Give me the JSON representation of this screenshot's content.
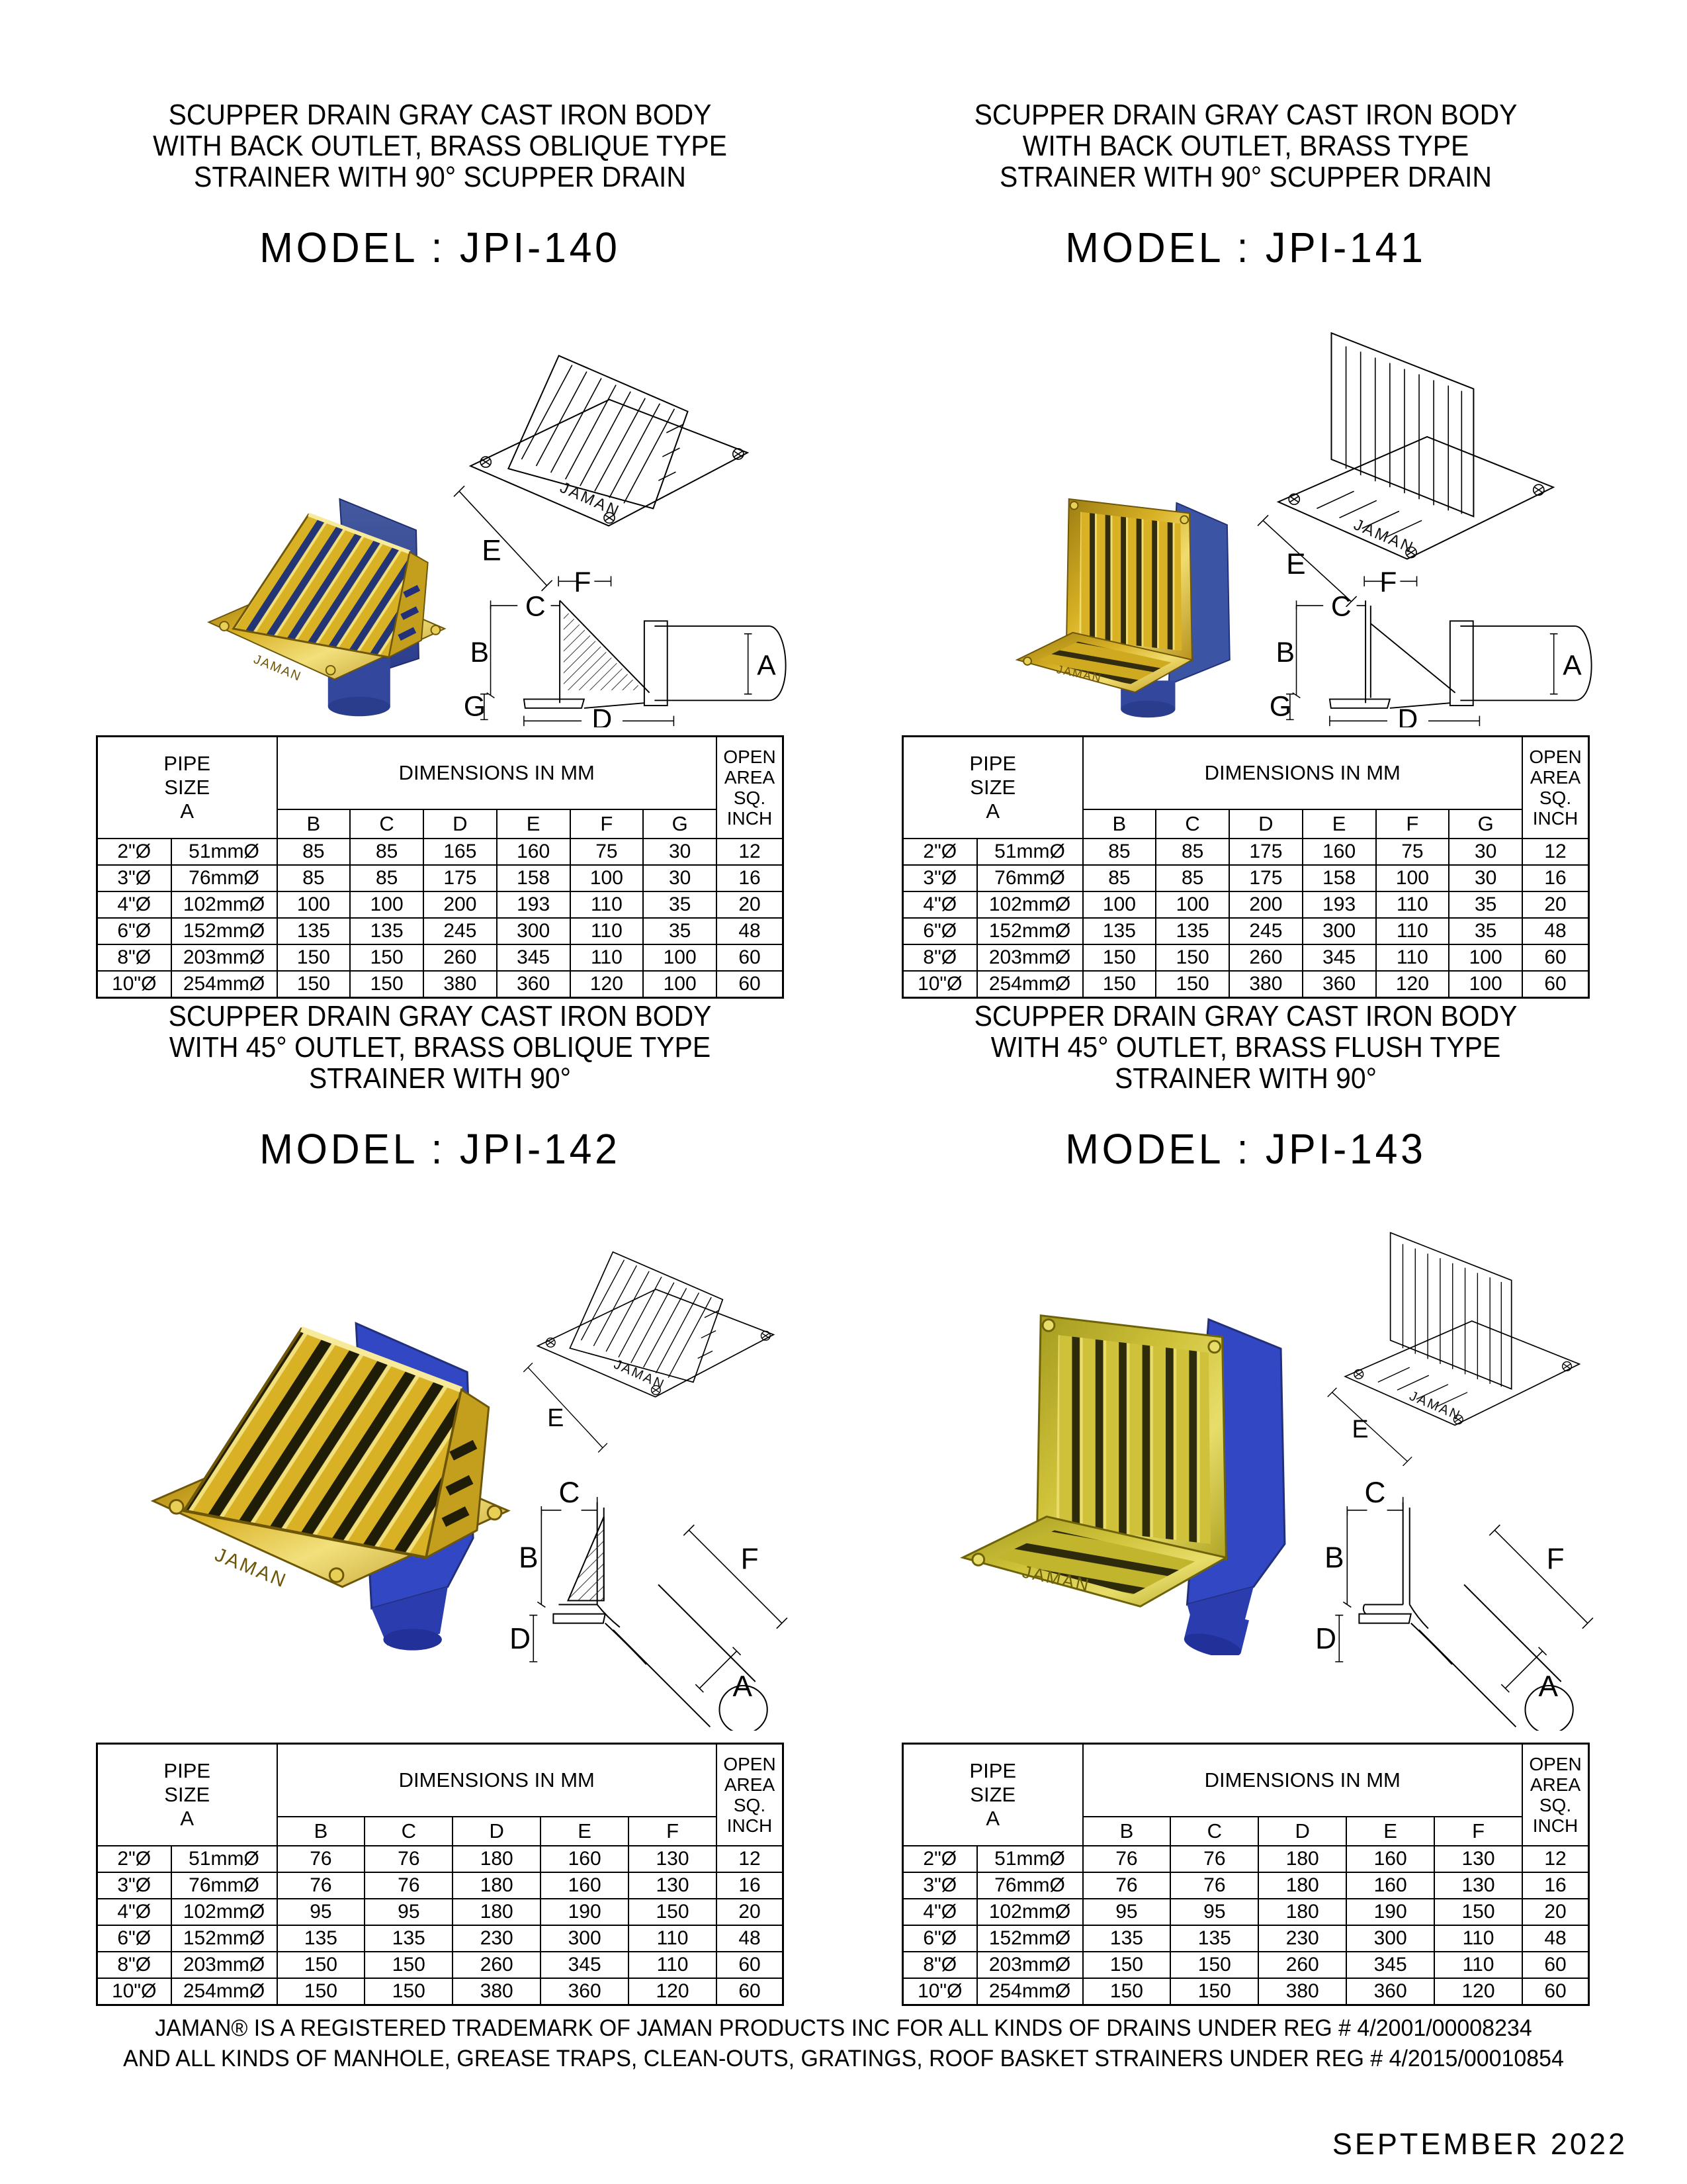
{
  "page": {
    "footer_line1": "JAMAN® IS A REGISTERED TRADEMARK OF JAMAN PRODUCTS INC FOR ALL KINDS OF DRAINS UNDER REG # 4/2001/00008234",
    "footer_line2": "AND ALL KINDS OF MANHOLE, GREASE TRAPS, CLEAN-OUTS, GRATINGS, ROOF BASKET STRAINERS UNDER REG # 4/2015/00010854",
    "date": "SEPTEMBER 2022",
    "colors": {
      "brass": "#C7A11C",
      "brass_light": "#F2E07C",
      "body_blue": "#3B54A4",
      "body_blue_dark": "#2A3C8C",
      "line": "#000000"
    }
  },
  "products": [
    {
      "id": "JPI-140",
      "title_lines": [
        "SCUPPER DRAIN GRAY CAST IRON BODY",
        "WITH BACK OUTLET, BRASS OBLIQUE TYPE",
        "STRAINER WITH 90° SCUPPER DRAIN"
      ],
      "model": "MODEL : JPI-140",
      "brand": "JAMAN",
      "diagram": {
        "iso_label": "E",
        "section_labels": [
          "F",
          "C",
          "B",
          "A",
          "G",
          "D"
        ]
      },
      "table": {
        "pipe_header": "PIPE\nSIZE\nA",
        "dims_header": "DIMENSIONS IN MM",
        "open_header": "OPEN\nAREA\nSQ.\nINCH",
        "dim_cols": [
          "B",
          "C",
          "D",
          "E",
          "F",
          "G"
        ],
        "rows": [
          [
            "2\"Ø",
            "51mmØ",
            "85",
            "85",
            "165",
            "160",
            "75",
            "30",
            "12"
          ],
          [
            "3\"Ø",
            "76mmØ",
            "85",
            "85",
            "175",
            "158",
            "100",
            "30",
            "16"
          ],
          [
            "4\"Ø",
            "102mmØ",
            "100",
            "100",
            "200",
            "193",
            "110",
            "35",
            "20"
          ],
          [
            "6\"Ø",
            "152mmØ",
            "135",
            "135",
            "245",
            "300",
            "110",
            "35",
            "48"
          ],
          [
            "8\"Ø",
            "203mmØ",
            "150",
            "150",
            "260",
            "345",
            "110",
            "100",
            "60"
          ],
          [
            "10\"Ø",
            "254mmØ",
            "150",
            "150",
            "380",
            "360",
            "120",
            "100",
            "60"
          ]
        ]
      }
    },
    {
      "id": "JPI-141",
      "title_lines": [
        "SCUPPER DRAIN GRAY CAST IRON BODY",
        "WITH BACK OUTLET, BRASS TYPE",
        "STRAINER WITH 90° SCUPPER DRAIN"
      ],
      "model": "MODEL : JPI-141",
      "brand": "JAMAN",
      "diagram": {
        "iso_label": "E",
        "section_labels": [
          "F",
          "C",
          "B",
          "A",
          "G",
          "D"
        ]
      },
      "table": {
        "pipe_header": "PIPE\nSIZE\nA",
        "dims_header": "DIMENSIONS IN MM",
        "open_header": "OPEN\nAREA\nSQ.\nINCH",
        "dim_cols": [
          "B",
          "C",
          "D",
          "E",
          "F",
          "G"
        ],
        "rows": [
          [
            "2\"Ø",
            "51mmØ",
            "85",
            "85",
            "175",
            "160",
            "75",
            "30",
            "12"
          ],
          [
            "3\"Ø",
            "76mmØ",
            "85",
            "85",
            "175",
            "158",
            "100",
            "30",
            "16"
          ],
          [
            "4\"Ø",
            "102mmØ",
            "100",
            "100",
            "200",
            "193",
            "110",
            "35",
            "20"
          ],
          [
            "6\"Ø",
            "152mmØ",
            "135",
            "135",
            "245",
            "300",
            "110",
            "35",
            "48"
          ],
          [
            "8\"Ø",
            "203mmØ",
            "150",
            "150",
            "260",
            "345",
            "110",
            "100",
            "60"
          ],
          [
            "10\"Ø",
            "254mmØ",
            "150",
            "150",
            "380",
            "360",
            "120",
            "100",
            "60"
          ]
        ]
      }
    },
    {
      "id": "JPI-142",
      "title_lines": [
        "SCUPPER DRAIN GRAY CAST IRON BODY",
        "WITH 45° OUTLET, BRASS OBLIQUE TYPE",
        "STRAINER WITH 90°"
      ],
      "model": "MODEL : JPI-142",
      "brand": "JAMAN",
      "diagram": {
        "iso_label": "E",
        "section_labels": [
          "C",
          "B",
          "F",
          "D",
          "A"
        ]
      },
      "table": {
        "pipe_header": "PIPE\nSIZE\nA",
        "dims_header": "DIMENSIONS IN MM",
        "open_header": "OPEN\nAREA\nSQ.\nINCH",
        "dim_cols": [
          "B",
          "C",
          "D",
          "E",
          "F"
        ],
        "rows": [
          [
            "2\"Ø",
            "51mmØ",
            "76",
            "76",
            "180",
            "160",
            "130",
            "12"
          ],
          [
            "3\"Ø",
            "76mmØ",
            "76",
            "76",
            "180",
            "160",
            "130",
            "16"
          ],
          [
            "4\"Ø",
            "102mmØ",
            "95",
            "95",
            "180",
            "190",
            "150",
            "20"
          ],
          [
            "6\"Ø",
            "152mmØ",
            "135",
            "135",
            "230",
            "300",
            "110",
            "48"
          ],
          [
            "8\"Ø",
            "203mmØ",
            "150",
            "150",
            "260",
            "345",
            "110",
            "60"
          ],
          [
            "10\"Ø",
            "254mmØ",
            "150",
            "150",
            "380",
            "360",
            "120",
            "60"
          ]
        ]
      }
    },
    {
      "id": "JPI-143",
      "title_lines": [
        "SCUPPER DRAIN GRAY CAST IRON BODY",
        "WITH 45° OUTLET, BRASS FLUSH TYPE",
        "STRAINER WITH 90°"
      ],
      "model": "MODEL : JPI-143",
      "brand": "JAMAN",
      "diagram": {
        "iso_label": "E",
        "section_labels": [
          "C",
          "B",
          "F",
          "D",
          "A"
        ]
      },
      "table": {
        "pipe_header": "PIPE\nSIZE\nA",
        "dims_header": "DIMENSIONS IN MM",
        "open_header": "OPEN\nAREA\nSQ.\nINCH",
        "dim_cols": [
          "B",
          "C",
          "D",
          "E",
          "F"
        ],
        "rows": [
          [
            "2\"Ø",
            "51mmØ",
            "76",
            "76",
            "180",
            "160",
            "130",
            "12"
          ],
          [
            "3\"Ø",
            "76mmØ",
            "76",
            "76",
            "180",
            "160",
            "130",
            "16"
          ],
          [
            "4\"Ø",
            "102mmØ",
            "95",
            "95",
            "180",
            "190",
            "150",
            "20"
          ],
          [
            "6\"Ø",
            "152mmØ",
            "135",
            "135",
            "230",
            "300",
            "110",
            "48"
          ],
          [
            "8\"Ø",
            "203mmØ",
            "150",
            "150",
            "260",
            "345",
            "110",
            "60"
          ],
          [
            "10\"Ø",
            "254mmØ",
            "150",
            "150",
            "380",
            "360",
            "120",
            "60"
          ]
        ]
      }
    }
  ]
}
